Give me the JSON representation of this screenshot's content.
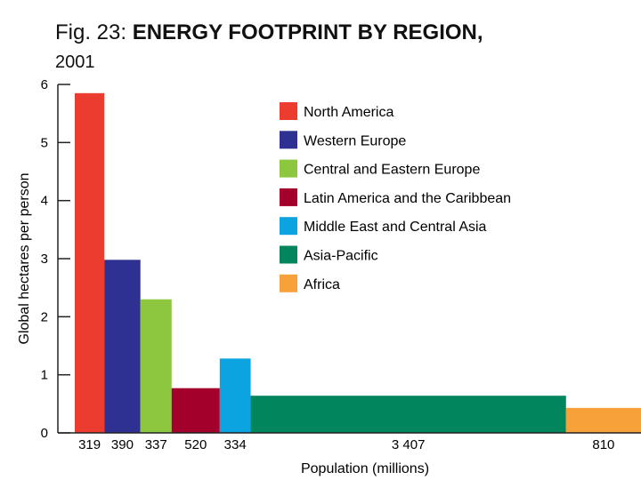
{
  "chart_data": {
    "type": "bar",
    "title_prefix": "Fig. 23:",
    "title": "ENERGY FOOTPRINT BY REGION,",
    "subtitle": "2001",
    "xlabel": "Population (millions)",
    "ylabel": "Global hectares per person",
    "ylim": [
      0,
      6
    ],
    "yticks": [
      "0",
      "1",
      "2",
      "3",
      "4",
      "5",
      "6"
    ],
    "grid": false,
    "legend_position": "top-right",
    "categories": [
      "North America",
      "Western Europe",
      "Central and Eastern Europe",
      "Latin America and the Caribbean",
      "Middle East and Central Asia",
      "Asia-Pacific",
      "Africa"
    ],
    "x_labels": [
      "319",
      "390",
      "337",
      "520",
      "334",
      "3 407",
      "810"
    ],
    "populations": [
      319,
      390,
      337,
      520,
      334,
      3407,
      810
    ],
    "values": [
      5.85,
      2.98,
      2.3,
      0.77,
      1.28,
      0.64,
      0.43
    ],
    "colors": [
      "#ec3b2f",
      "#2e3192",
      "#8dc63f",
      "#a3002c",
      "#0ba3e0",
      "#00855d",
      "#f7a13a"
    ]
  }
}
